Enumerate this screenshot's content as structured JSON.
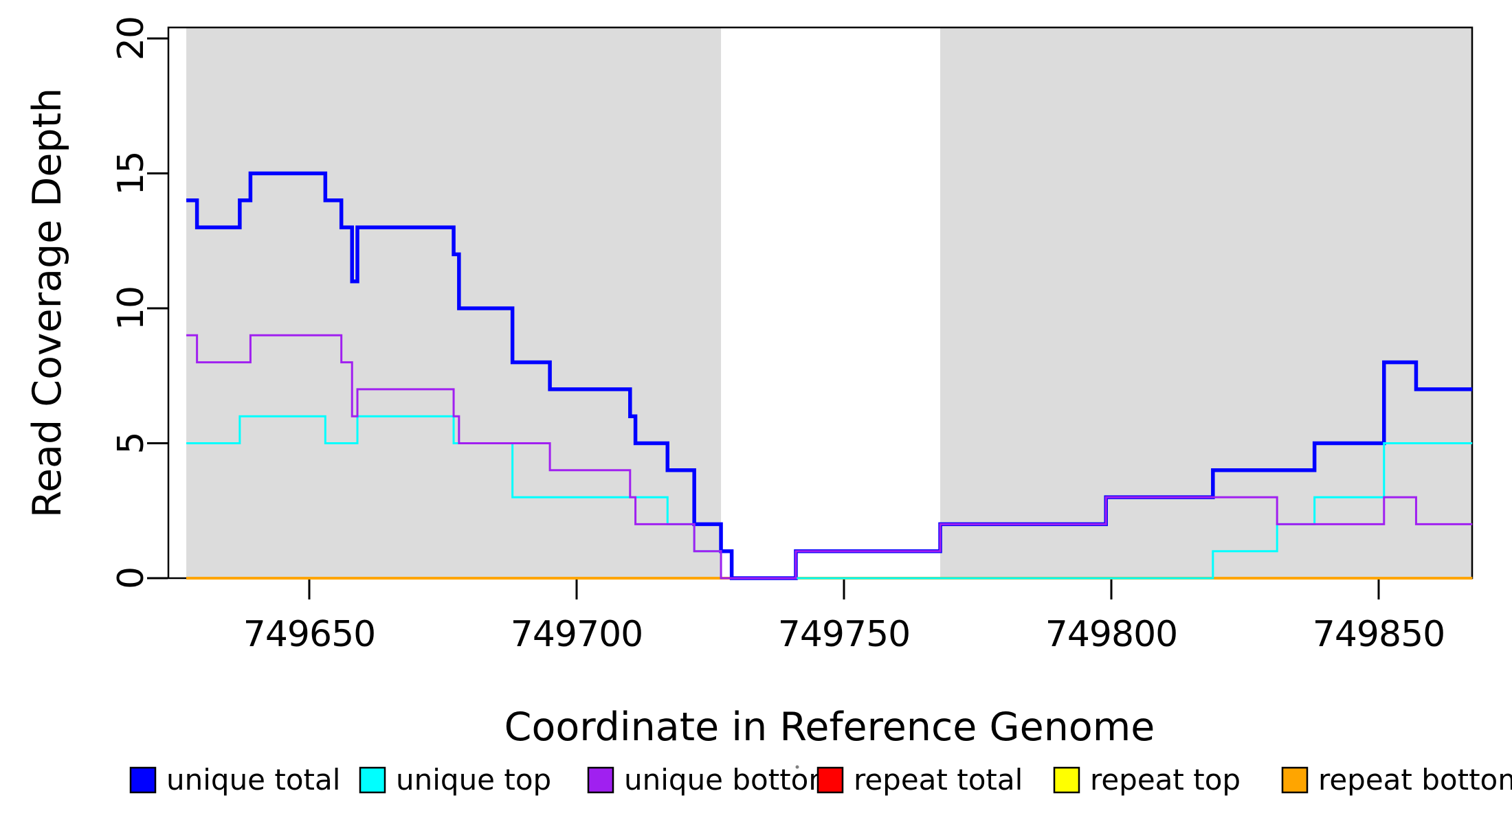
{
  "chart_data": {
    "type": "line",
    "subtype": "step-coverage",
    "title": "",
    "xlabel": "Coordinate in Reference Genome",
    "ylabel": "Read Coverage Depth",
    "x_ticks": [
      749650,
      749700,
      749750,
      749800,
      749850
    ],
    "y_ticks": [
      0,
      5,
      10,
      15,
      20
    ],
    "ylim": [
      0,
      20
    ],
    "x_range": [
      749627,
      749867.5
    ],
    "grid": "off",
    "legend_position": "bottom",
    "shaded_regions": {
      "color": "#DCDCDC",
      "ranges": [
        [
          749627,
          749727
        ],
        [
          749768,
          749867.5
        ]
      ]
    },
    "draw_order": [
      3,
      4,
      5,
      0,
      1,
      2
    ],
    "series": [
      {
        "name": "unique total",
        "color": "#0000FF",
        "width": 5.5,
        "points": [
          [
            749627,
            14
          ],
          [
            749629,
            13
          ],
          [
            749637,
            14
          ],
          [
            749639,
            15
          ],
          [
            749653,
            14
          ],
          [
            749656,
            13
          ],
          [
            749658,
            11
          ],
          [
            749659,
            13
          ],
          [
            749677,
            12
          ],
          [
            749678,
            10
          ],
          [
            749688,
            8
          ],
          [
            749695,
            7
          ],
          [
            749710,
            6
          ],
          [
            749711,
            5
          ],
          [
            749717,
            4
          ],
          [
            749722,
            2
          ],
          [
            749727,
            1
          ],
          [
            749729,
            0
          ],
          [
            749741,
            1
          ],
          [
            749768,
            2
          ],
          [
            749799,
            3
          ],
          [
            749819,
            4
          ],
          [
            749838,
            5
          ],
          [
            749851,
            8
          ],
          [
            749857,
            7
          ]
        ]
      },
      {
        "name": "unique top",
        "color": "#00FFFF",
        "width": 3,
        "points": [
          [
            749627,
            5
          ],
          [
            749637,
            6
          ],
          [
            749653,
            5
          ],
          [
            749659,
            6
          ],
          [
            749677,
            5
          ],
          [
            749688,
            3
          ],
          [
            749717,
            2
          ],
          [
            749722,
            1
          ],
          [
            749727,
            0
          ],
          [
            749819,
            1
          ],
          [
            749831,
            2
          ],
          [
            749838,
            3
          ],
          [
            749851,
            5
          ]
        ]
      },
      {
        "name": "unique bottom",
        "color": "#A020F0",
        "width": 3,
        "points": [
          [
            749627,
            9
          ],
          [
            749629,
            8
          ],
          [
            749639,
            9
          ],
          [
            749656,
            8
          ],
          [
            749658,
            6
          ],
          [
            749659,
            7
          ],
          [
            749677,
            6
          ],
          [
            749678,
            5
          ],
          [
            749695,
            4
          ],
          [
            749710,
            3
          ],
          [
            749711,
            2
          ],
          [
            749722,
            1
          ],
          [
            749727,
            0
          ],
          [
            749741,
            1
          ],
          [
            749768,
            2
          ],
          [
            749799,
            3
          ],
          [
            749831,
            2
          ],
          [
            749851,
            3
          ],
          [
            749857,
            2
          ]
        ]
      },
      {
        "name": "repeat total",
        "color": "#FF0000",
        "width": 4,
        "points": [
          [
            749627,
            0
          ]
        ]
      },
      {
        "name": "repeat top",
        "color": "#FFFF00",
        "width": 4,
        "points": [
          [
            749627,
            0
          ]
        ]
      },
      {
        "name": "repeat bottom",
        "color": "#FFA500",
        "width": 4,
        "points": [
          [
            749627,
            0
          ]
        ]
      }
    ]
  },
  "legend": {
    "items": [
      {
        "label": "unique total",
        "color": "#0000FF"
      },
      {
        "label": "unique top",
        "color": "#00FFFF"
      },
      {
        "label": "unique bottom",
        "color": "#A020F0"
      },
      {
        "label": "repeat total",
        "color": "#FF0000"
      },
      {
        "label": "repeat top",
        "color": "#FFFF00"
      },
      {
        "label": "repeat bottom",
        "color": "#FFA500"
      }
    ]
  }
}
